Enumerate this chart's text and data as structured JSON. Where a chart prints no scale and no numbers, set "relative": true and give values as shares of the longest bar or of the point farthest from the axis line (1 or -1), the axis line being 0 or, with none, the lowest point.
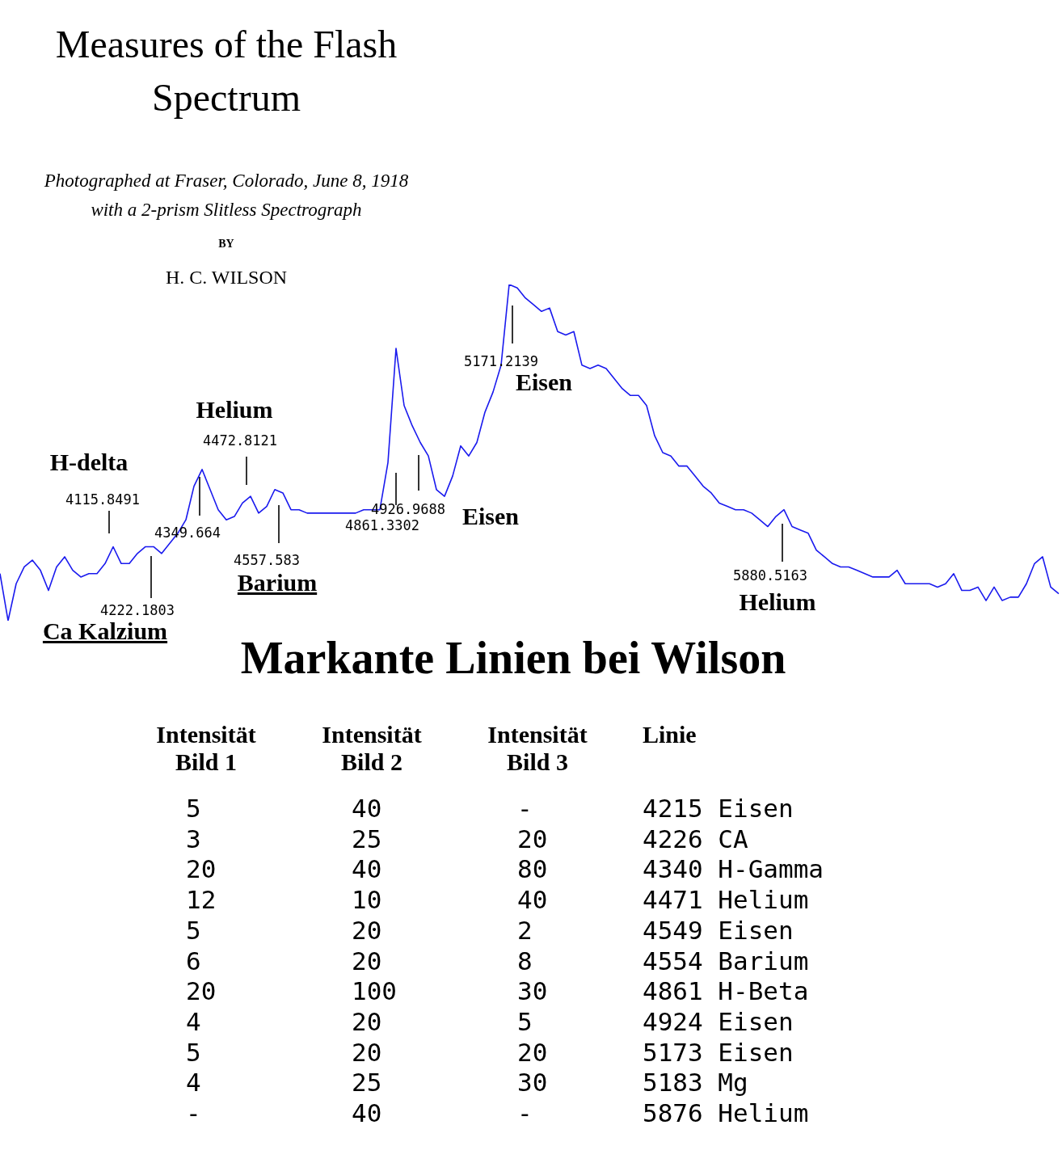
{
  "chart_data": {
    "type": "line",
    "relative": true,
    "title": "Measures of the Flash Spectrum",
    "subtitle": "Photographed at Fraser, Colorado, June 8, 1918 with a 2-prism Slitless Spectrograph",
    "categories": [
      null,
      null,
      null,
      null,
      null,
      null,
      null,
      null,
      null,
      null,
      null,
      null,
      null,
      null,
      null,
      null,
      null,
      null,
      null,
      null,
      null,
      null,
      null,
      null,
      null,
      null,
      null,
      null,
      null,
      null,
      null,
      null,
      null,
      null,
      null,
      null,
      null,
      null,
      null,
      null,
      null,
      null,
      null,
      null,
      null,
      null,
      null,
      null,
      null,
      null,
      null,
      null,
      null,
      null,
      null,
      null,
      null,
      null,
      null,
      null,
      null,
      null,
      null,
      null,
      null,
      null,
      null,
      null,
      null,
      null,
      null,
      null,
      null,
      null,
      null,
      null,
      null,
      null,
      null,
      null,
      null,
      null,
      null,
      null,
      null,
      null,
      null,
      null,
      null,
      null,
      null,
      null,
      null,
      null,
      null,
      null,
      null,
      null,
      null,
      null,
      null,
      null,
      null,
      null,
      null,
      null,
      null,
      null,
      null,
      null,
      null,
      null,
      null,
      null,
      null,
      null,
      null,
      null,
      null,
      null,
      null,
      null,
      null,
      null,
      null,
      null,
      null,
      null,
      null,
      null,
      null,
      null
    ],
    "series": [
      {
        "color": "#1a1aee",
        "values": [
          0.14,
          0,
          0.11,
          0.16,
          0.18,
          0.15,
          0.09,
          0.16,
          0.19,
          0.15,
          0.13,
          0.14,
          0.14,
          0.17,
          0.22,
          0.17,
          0.17,
          0.2,
          0.22,
          0.22,
          0.2,
          0.23,
          0.26,
          0.3,
          0.4,
          0.45,
          0.39,
          0.33,
          0.3,
          0.31,
          0.35,
          0.37,
          0.32,
          0.34,
          0.39,
          0.38,
          0.33,
          0.33,
          0.32,
          0.32,
          0.32,
          0.32,
          0.32,
          0.32,
          0.32,
          0.33,
          0.33,
          0.33,
          0.47,
          0.81,
          0.64,
          0.58,
          0.53,
          0.49,
          0.39,
          0.37,
          0.43,
          0.52,
          0.49,
          0.53,
          0.62,
          0.68,
          0.76,
          1,
          0.99,
          0.96,
          0.94,
          0.92,
          0.93,
          0.86,
          0.85,
          0.86,
          0.76,
          0.75,
          0.76,
          0.75,
          0.72,
          0.69,
          0.67,
          0.67,
          0.64,
          0.55,
          0.5,
          0.49,
          0.46,
          0.46,
          0.43,
          0.4,
          0.38,
          0.35,
          0.34,
          0.33,
          0.33,
          0.32,
          0.3,
          0.28,
          0.31,
          0.33,
          0.28,
          0.27,
          0.26,
          0.21,
          0.19,
          0.17,
          0.16,
          0.16,
          0.15,
          0.14,
          0.13,
          0.13,
          0.13,
          0.15,
          0.11,
          0.11,
          0.11,
          0.11,
          0.1,
          0.11,
          0.14,
          0.09,
          0.09,
          0.1,
          0.06,
          0.1,
          0.06,
          0.07,
          0.07,
          0.11,
          0.17,
          0.19,
          0.1,
          0.08
        ]
      }
    ],
    "annotations": [
      "4115.8491",
      "H-delta",
      "4222.1803",
      "Ca Kalzium",
      "4349.664",
      "4472.8121",
      "Helium",
      "4557.583",
      "Barium",
      "4861.3302",
      "4926.9688",
      "Eisen",
      "5171.2139",
      "Eisen",
      "5880.5163",
      "Helium",
      "BY",
      "H. C. WILSON",
      "Markante Linien bei Wilson",
      "Intensität Bild 1",
      "Intensität Bild 2",
      "Intensität Bild 3",
      "Linie",
      "5",
      "40",
      "-",
      "4215 Eisen",
      "3",
      "25",
      "20",
      "4226 CA",
      "20",
      "40",
      "80",
      "4340 H-Gamma",
      "12",
      "10",
      "40",
      "4471 Helium",
      "5",
      "20",
      "2",
      "4549 Eisen",
      "6",
      "20",
      "8",
      "4554 Barium",
      "20",
      "100",
      "30",
      "4861 H-Beta",
      "4",
      "20",
      "5",
      "4924 Eisen",
      "5",
      "20",
      "20",
      "5173 Eisen",
      "4",
      "25",
      "30",
      "5183 Mg",
      "-",
      "40",
      "-",
      "5876 Helium"
    ]
  }
}
